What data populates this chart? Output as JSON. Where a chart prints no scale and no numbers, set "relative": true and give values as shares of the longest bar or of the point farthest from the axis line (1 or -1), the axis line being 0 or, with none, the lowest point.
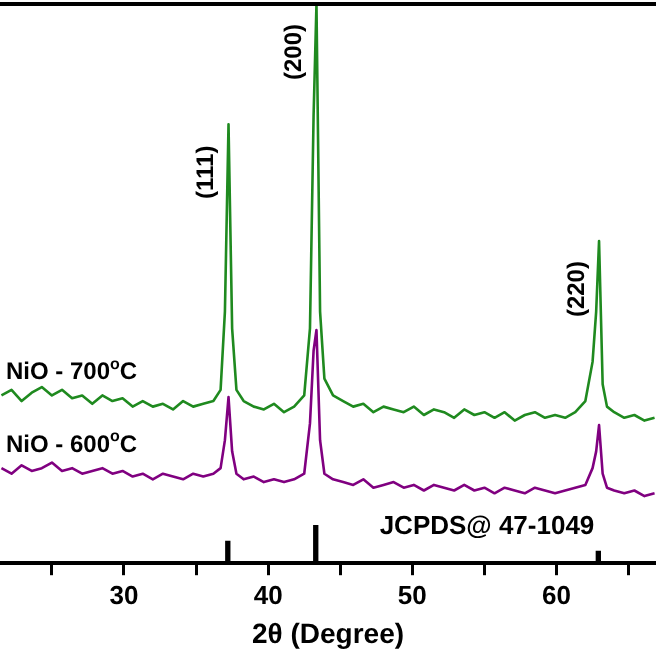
{
  "chart_data": {
    "type": "line",
    "relative": true,
    "xlabel": "2θ (Degree)",
    "xlim": [
      21.4,
      66.9
    ],
    "xticks": [
      {
        "value": 25,
        "label": null
      },
      30,
      {
        "value": 35,
        "label": null
      },
      40,
      {
        "value": 45,
        "label": null
      },
      50,
      {
        "value": 55,
        "label": null
      },
      60,
      {
        "value": 65,
        "label": null
      }
    ],
    "tick_labels": "x",
    "series": [
      {
        "name": "NiO - 700$^{o}$C",
        "color": "#1f8a1f",
        "x": [
          21.5,
          22.2,
          22.9,
          23.6,
          24.3,
          25.0,
          25.7,
          26.4,
          27.1,
          27.8,
          28.5,
          29.2,
          29.9,
          30.6,
          31.3,
          32.0,
          32.7,
          33.4,
          34.1,
          34.8,
          35.5,
          36.2,
          36.7,
          37.0,
          37.25,
          37.5,
          37.8,
          38.3,
          39.0,
          39.7,
          40.4,
          41.1,
          41.8,
          42.5,
          42.9,
          43.15,
          43.35,
          43.6,
          43.9,
          44.5,
          45.2,
          45.9,
          46.6,
          47.3,
          48.0,
          48.7,
          49.4,
          50.1,
          50.8,
          51.5,
          52.2,
          52.9,
          53.6,
          54.3,
          55.0,
          55.7,
          56.4,
          57.1,
          57.8,
          58.5,
          59.2,
          59.9,
          60.6,
          61.3,
          62.0,
          62.5,
          62.75,
          62.95,
          63.2,
          63.5,
          64.0,
          64.7,
          65.4,
          66.1,
          66.8
        ],
        "values": [
          0.3,
          0.31,
          0.29,
          0.305,
          0.315,
          0.3,
          0.31,
          0.295,
          0.3,
          0.285,
          0.3,
          0.29,
          0.295,
          0.28,
          0.29,
          0.28,
          0.285,
          0.275,
          0.29,
          0.28,
          0.285,
          0.29,
          0.31,
          0.45,
          0.785,
          0.42,
          0.31,
          0.29,
          0.28,
          0.275,
          0.285,
          0.27,
          0.28,
          0.3,
          0.42,
          0.8,
          1.0,
          0.45,
          0.33,
          0.3,
          0.29,
          0.28,
          0.285,
          0.27,
          0.28,
          0.275,
          0.27,
          0.28,
          0.265,
          0.275,
          0.27,
          0.26,
          0.275,
          0.265,
          0.27,
          0.26,
          0.27,
          0.255,
          0.265,
          0.27,
          0.26,
          0.265,
          0.26,
          0.27,
          0.29,
          0.36,
          0.45,
          0.576,
          0.32,
          0.28,
          0.27,
          0.26,
          0.265,
          0.255,
          0.26
        ]
      },
      {
        "name": "NiO - 600$^{o}$C",
        "color": "#800080",
        "x": [
          21.5,
          22.2,
          22.9,
          23.6,
          24.3,
          25.0,
          25.7,
          26.4,
          27.1,
          27.8,
          28.5,
          29.2,
          29.9,
          30.6,
          31.3,
          32.0,
          32.7,
          33.4,
          34.1,
          34.8,
          35.5,
          36.2,
          36.7,
          37.0,
          37.25,
          37.5,
          37.8,
          38.3,
          39.0,
          39.7,
          40.4,
          41.1,
          41.8,
          42.5,
          42.9,
          43.15,
          43.35,
          43.6,
          43.9,
          44.5,
          45.2,
          45.9,
          46.6,
          47.3,
          48.0,
          48.7,
          49.4,
          50.1,
          50.8,
          51.5,
          52.2,
          52.9,
          53.6,
          54.3,
          55.0,
          55.7,
          56.4,
          57.1,
          57.8,
          58.5,
          59.2,
          59.9,
          60.6,
          61.3,
          62.0,
          62.5,
          62.75,
          62.95,
          63.2,
          63.5,
          64.0,
          64.7,
          65.4,
          66.1,
          66.8
        ],
        "values": [
          0.17,
          0.16,
          0.175,
          0.165,
          0.17,
          0.18,
          0.165,
          0.17,
          0.16,
          0.165,
          0.17,
          0.16,
          0.165,
          0.155,
          0.16,
          0.15,
          0.16,
          0.155,
          0.15,
          0.16,
          0.155,
          0.16,
          0.17,
          0.22,
          0.297,
          0.2,
          0.16,
          0.15,
          0.155,
          0.145,
          0.15,
          0.145,
          0.15,
          0.16,
          0.25,
          0.38,
          0.417,
          0.22,
          0.16,
          0.15,
          0.145,
          0.14,
          0.15,
          0.135,
          0.14,
          0.145,
          0.135,
          0.14,
          0.13,
          0.14,
          0.135,
          0.13,
          0.14,
          0.13,
          0.135,
          0.125,
          0.135,
          0.13,
          0.125,
          0.135,
          0.13,
          0.125,
          0.13,
          0.135,
          0.14,
          0.17,
          0.2,
          0.247,
          0.16,
          0.135,
          0.13,
          0.125,
          0.13,
          0.12,
          0.125
        ]
      },
      {
        "name": "JCPDS@ 47-1049",
        "type": "bar",
        "color": "#000000",
        "x": [
          37.2,
          43.3,
          62.9
        ],
        "values": [
          0.039,
          0.067,
          0.021
        ]
      }
    ],
    "annotations": [
      {
        "text": "(111)",
        "x": 37.25,
        "y": 0.785
      },
      {
        "text": "(200)",
        "x": 43.35,
        "y": 1.0
      },
      {
        "text": "(220)",
        "x": 62.95,
        "y": 0.576
      }
    ]
  }
}
